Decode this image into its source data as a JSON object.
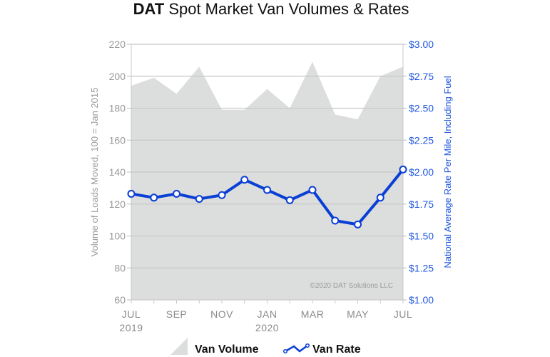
{
  "chart_data": {
    "type": "area+line",
    "title_brand": "DAT",
    "title": "Spot Market Van Volumes & Rates",
    "categories": [
      "Jul 2019",
      "Aug 2019",
      "Sep 2019",
      "Oct 2019",
      "Nov 2019",
      "Dec 2019",
      "Jan 2020",
      "Feb 2020",
      "Mar 2020",
      "Apr 2020",
      "May 2020",
      "Jun 2020",
      "Jul 2020"
    ],
    "x_tick_labels": [
      {
        "month": "JUL",
        "year": "2019"
      },
      {
        "month": "SEP",
        "year": ""
      },
      {
        "month": "NOV",
        "year": ""
      },
      {
        "month": "JAN",
        "year": "2020"
      },
      {
        "month": "MAR",
        "year": ""
      },
      {
        "month": "MAY",
        "year": ""
      },
      {
        "month": "JUL",
        "year": ""
      }
    ],
    "series": [
      {
        "name": "Van Volume",
        "type": "area",
        "axis": "left",
        "color": "#dcdddd",
        "values": [
          194,
          199,
          189,
          206,
          179,
          179,
          192,
          180,
          209,
          176,
          173,
          200,
          206
        ]
      },
      {
        "name": "Van Rate",
        "type": "line",
        "axis": "right",
        "color": "#0a3fd6",
        "values": [
          1.83,
          1.8,
          1.83,
          1.79,
          1.82,
          1.94,
          1.86,
          1.78,
          1.86,
          1.62,
          1.59,
          1.8,
          2.02
        ]
      }
    ],
    "ylabel_left": "Volume of Loads Moved, 100 = Jan 2015",
    "ylabel_right": "National Average Rate Per Mile, Including Fuel",
    "ylim_left": [
      60,
      220
    ],
    "ylim_right": [
      1.0,
      3.0
    ],
    "yticks_left": [
      "60",
      "80",
      "100",
      "120",
      "140",
      "160",
      "180",
      "200",
      "220"
    ],
    "yticks_right": [
      "$1.00",
      "$1.25",
      "$1.50",
      "$1.75",
      "$2.00",
      "$2.25",
      "$2.50",
      "$2.75",
      "$3.00"
    ],
    "grid": true,
    "legend_position": "bottom",
    "copyright": "©2020 DAT Solutions LLC"
  }
}
